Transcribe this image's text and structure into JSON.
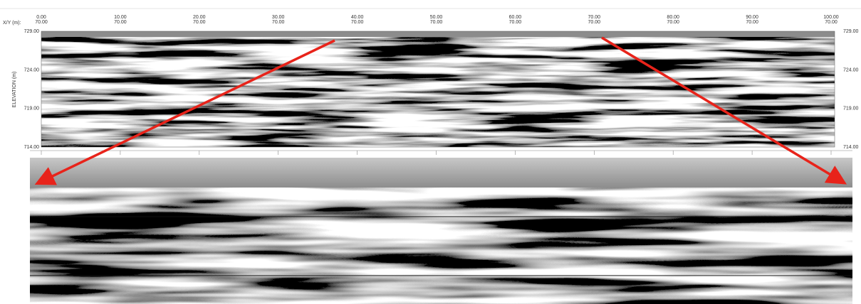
{
  "x_axis": {
    "label": "X/Y (m):",
    "ticks": [
      {
        "x": "0.00",
        "y": "70.00"
      },
      {
        "x": "10.00",
        "y": "70.00"
      },
      {
        "x": "20.00",
        "y": "70.00"
      },
      {
        "x": "30.00",
        "y": "70.00"
      },
      {
        "x": "40.00",
        "y": "70.00"
      },
      {
        "x": "50.00",
        "y": "70.00"
      },
      {
        "x": "60.00",
        "y": "70.00"
      },
      {
        "x": "70.00",
        "y": "70.00"
      },
      {
        "x": "80.00",
        "y": "70.00"
      },
      {
        "x": "90.00",
        "y": "70.00"
      },
      {
        "x": "100.00",
        "y": "70.00"
      }
    ]
  },
  "y_axis": {
    "label": "ELEVATION (m)",
    "ticks": [
      "729.00",
      "724.00",
      "719.00",
      "714.00"
    ]
  }
}
